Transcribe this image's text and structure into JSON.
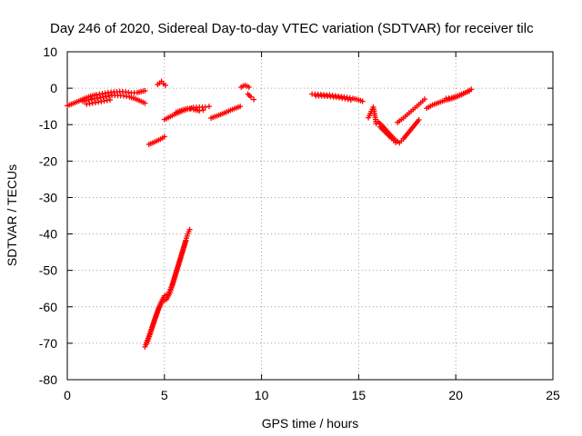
{
  "chart_data": {
    "type": "scatter",
    "title": "Day 246 of 2020, Sidereal Day-to-day VTEC variation (SDTVAR) for receiver tilc",
    "xlabel": "GPS time / hours",
    "ylabel": "SDTVAR / TECUs",
    "xlim": [
      0,
      25
    ],
    "ylim": [
      -80,
      10
    ],
    "xticks": [
      "0",
      "5",
      "10",
      "15",
      "20",
      "25"
    ],
    "yticks": [
      "10",
      "0",
      "-10",
      "-20",
      "-30",
      "-40",
      "-50",
      "-60",
      "-70",
      "-80"
    ],
    "grid": true,
    "marker": "+",
    "color": "#ff0000",
    "segments": [
      {
        "points": [
          [
            0.0,
            -4.8
          ],
          [
            0.3,
            -4.2
          ],
          [
            0.6,
            -3.5
          ],
          [
            0.9,
            -2.8
          ],
          [
            1.2,
            -2.2
          ],
          [
            1.5,
            -1.8
          ],
          [
            1.8,
            -1.5
          ],
          [
            2.1,
            -1.2
          ],
          [
            2.4,
            -1.0
          ],
          [
            2.7,
            -0.9
          ],
          [
            3.0,
            -1.0
          ],
          [
            3.3,
            -1.3
          ],
          [
            3.6,
            -1.2
          ],
          [
            3.9,
            -0.8
          ],
          [
            4.0,
            -0.7
          ]
        ]
      },
      {
        "points": [
          [
            0.8,
            -3.6
          ],
          [
            1.1,
            -3.2
          ],
          [
            1.4,
            -2.9
          ],
          [
            1.7,
            -2.6
          ],
          [
            2.0,
            -2.3
          ],
          [
            2.3,
            -2.0
          ],
          [
            2.6,
            -2.0
          ],
          [
            2.9,
            -2.1
          ],
          [
            3.2,
            -2.4
          ],
          [
            3.5,
            -2.9
          ],
          [
            3.8,
            -3.6
          ],
          [
            4.0,
            -4.1
          ]
        ]
      },
      {
        "points": [
          [
            1.0,
            -4.4
          ],
          [
            1.3,
            -4.1
          ],
          [
            1.6,
            -3.8
          ],
          [
            1.9,
            -3.5
          ],
          [
            2.2,
            -3.2
          ]
        ]
      },
      {
        "points": [
          [
            4.65,
            1.0
          ],
          [
            4.75,
            1.4
          ],
          [
            4.85,
            1.9
          ],
          [
            4.95,
            1.2
          ],
          [
            5.05,
            0.8
          ]
        ]
      },
      {
        "points": [
          [
            4.2,
            -15.4
          ],
          [
            4.4,
            -15.0
          ],
          [
            4.6,
            -14.5
          ],
          [
            4.8,
            -14.0
          ],
          [
            5.0,
            -13.3
          ]
        ]
      },
      {
        "points": [
          [
            5.0,
            -8.6
          ],
          [
            5.3,
            -7.8
          ],
          [
            5.6,
            -7.0
          ],
          [
            5.9,
            -6.3
          ],
          [
            6.2,
            -5.7
          ],
          [
            6.5,
            -5.3
          ],
          [
            6.8,
            -5.2
          ],
          [
            7.1,
            -5.2
          ],
          [
            7.3,
            -5.0
          ]
        ]
      },
      {
        "points": [
          [
            5.6,
            -6.6
          ],
          [
            5.9,
            -6.0
          ],
          [
            6.2,
            -5.6
          ],
          [
            6.5,
            -5.8
          ],
          [
            6.8,
            -6.2
          ],
          [
            7.0,
            -6.0
          ]
        ]
      },
      {
        "points": [
          [
            7.4,
            -8.2
          ],
          [
            7.7,
            -7.6
          ],
          [
            8.0,
            -7.0
          ],
          [
            8.3,
            -6.3
          ],
          [
            8.6,
            -5.6
          ],
          [
            8.9,
            -5.0
          ]
        ]
      },
      {
        "points": [
          [
            8.95,
            0.3
          ],
          [
            9.05,
            0.6
          ],
          [
            9.15,
            0.8
          ],
          [
            9.25,
            0.6
          ],
          [
            9.35,
            0.3
          ]
        ]
      },
      {
        "points": [
          [
            9.3,
            -1.6
          ],
          [
            9.45,
            -2.4
          ],
          [
            9.6,
            -3.1
          ]
        ]
      },
      {
        "points": [
          [
            4.0,
            -71.0
          ],
          [
            4.2,
            -68.0
          ],
          [
            4.4,
            -65.0
          ],
          [
            4.6,
            -62.0
          ],
          [
            4.8,
            -59.0
          ],
          [
            5.0,
            -57.0
          ],
          [
            5.2,
            -56.5
          ],
          [
            5.4,
            -54.0
          ],
          [
            5.6,
            -50.5
          ],
          [
            5.8,
            -47.0
          ],
          [
            6.0,
            -43.5
          ],
          [
            6.2,
            -40.0
          ],
          [
            6.3,
            -38.8
          ]
        ]
      },
      {
        "points": [
          [
            4.1,
            -70.0
          ],
          [
            4.3,
            -67.0
          ],
          [
            4.5,
            -63.5
          ],
          [
            4.7,
            -60.5
          ],
          [
            4.9,
            -58.5
          ],
          [
            5.1,
            -58.0
          ],
          [
            5.3,
            -56.0
          ],
          [
            5.5,
            -52.5
          ],
          [
            5.7,
            -49.0
          ],
          [
            5.9,
            -45.5
          ],
          [
            6.1,
            -42.0
          ]
        ]
      },
      {
        "points": [
          [
            12.6,
            -1.6
          ],
          [
            12.9,
            -1.7
          ],
          [
            13.2,
            -1.8
          ],
          [
            13.5,
            -1.9
          ],
          [
            13.8,
            -2.1
          ],
          [
            14.1,
            -2.3
          ],
          [
            14.4,
            -2.5
          ],
          [
            14.7,
            -2.8
          ],
          [
            15.0,
            -3.2
          ],
          [
            15.2,
            -3.6
          ]
        ]
      },
      {
        "points": [
          [
            12.8,
            -2.1
          ],
          [
            13.1,
            -2.1
          ],
          [
            13.4,
            -2.2
          ],
          [
            13.7,
            -2.4
          ],
          [
            14.0,
            -2.6
          ],
          [
            14.3,
            -2.9
          ],
          [
            14.6,
            -3.2
          ]
        ]
      },
      {
        "points": [
          [
            15.5,
            -8.1
          ],
          [
            15.75,
            -5.2
          ],
          [
            15.8,
            -6.3
          ],
          [
            15.9,
            -9.7
          ]
        ]
      },
      {
        "points": [
          [
            16.0,
            -9.2
          ],
          [
            16.3,
            -10.8
          ],
          [
            16.6,
            -12.6
          ],
          [
            16.9,
            -14.3
          ],
          [
            17.1,
            -15.0
          ],
          [
            17.3,
            -13.9
          ],
          [
            17.5,
            -12.6
          ],
          [
            17.7,
            -11.3
          ],
          [
            17.9,
            -10.0
          ],
          [
            18.1,
            -8.7
          ]
        ]
      },
      {
        "points": [
          [
            16.1,
            -10.6
          ],
          [
            16.4,
            -12.2
          ],
          [
            16.7,
            -13.8
          ],
          [
            16.9,
            -14.9
          ]
        ]
      },
      {
        "points": [
          [
            17.0,
            -9.4
          ],
          [
            17.3,
            -8.2
          ],
          [
            17.6,
            -6.8
          ],
          [
            17.9,
            -5.4
          ],
          [
            18.2,
            -4.0
          ],
          [
            18.4,
            -3.0
          ]
        ]
      },
      {
        "points": [
          [
            18.5,
            -5.5
          ],
          [
            18.8,
            -4.6
          ],
          [
            19.1,
            -4.0
          ],
          [
            19.4,
            -3.4
          ],
          [
            19.7,
            -3.0
          ],
          [
            20.0,
            -2.5
          ],
          [
            20.3,
            -1.8
          ],
          [
            20.6,
            -0.9
          ],
          [
            20.8,
            -0.3
          ]
        ]
      },
      {
        "points": [
          [
            19.5,
            -2.8
          ],
          [
            19.8,
            -2.6
          ],
          [
            20.1,
            -2.1
          ],
          [
            20.4,
            -1.4
          ],
          [
            20.7,
            -0.8
          ]
        ]
      }
    ]
  }
}
